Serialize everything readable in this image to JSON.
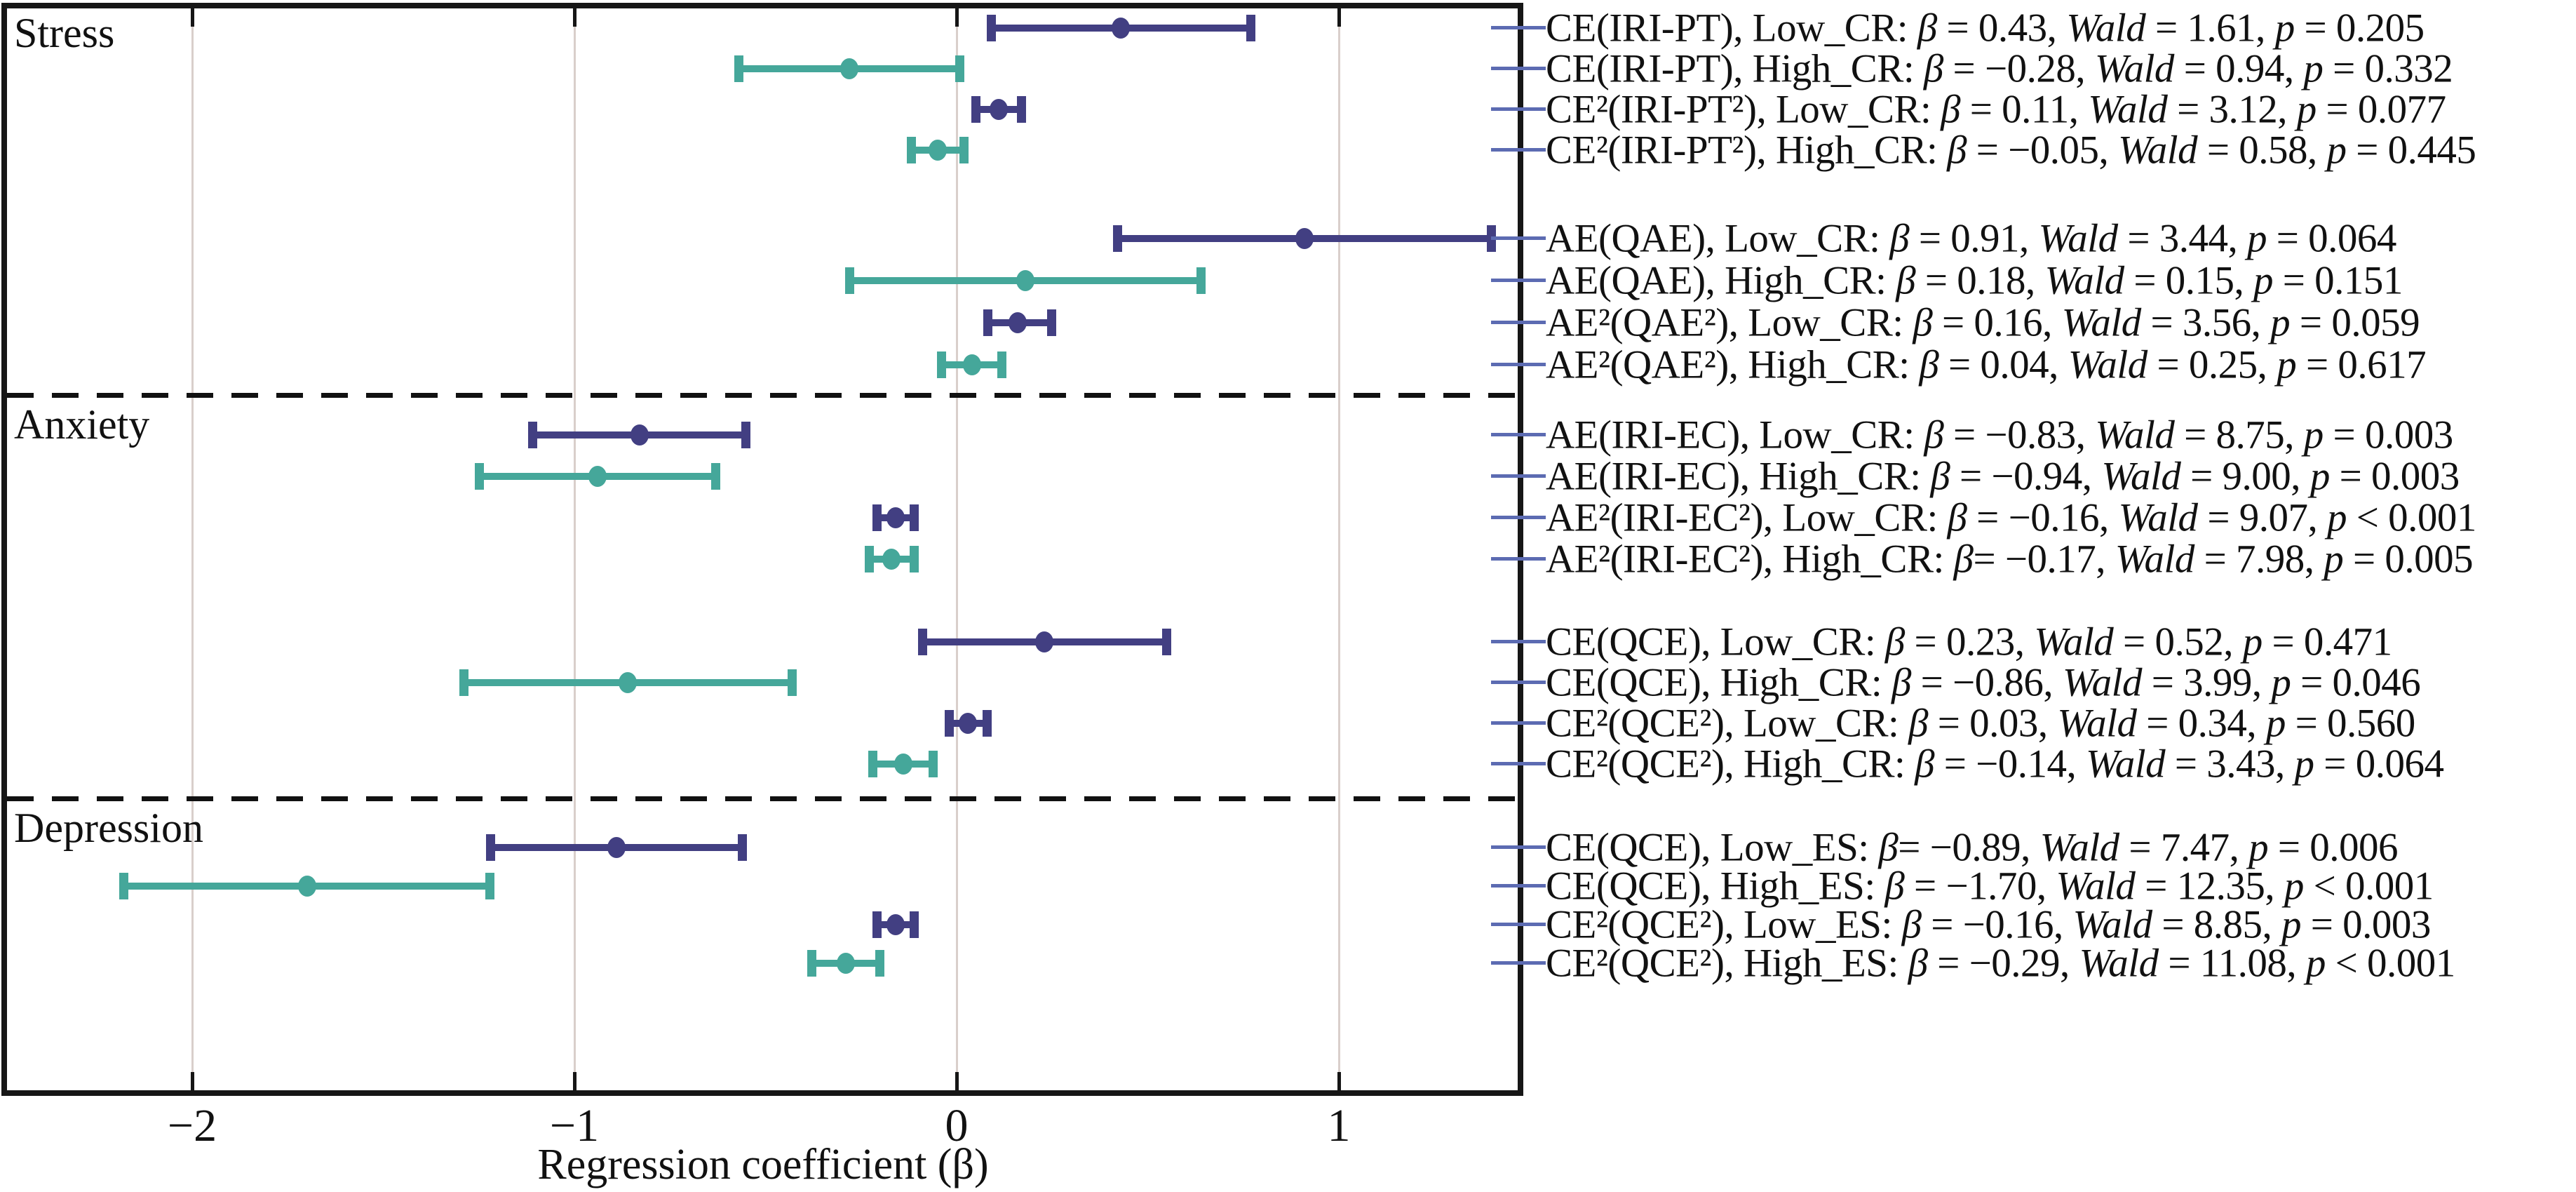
{
  "figure": {
    "x_axis_title": "Regression coefficient (β)",
    "section_labels": [
      "Stress",
      "Anxiety",
      "Depression"
    ]
  },
  "chart_data": {
    "type": "scatter",
    "subtype": "forest-plot-horizontal-error-bars",
    "title": "",
    "xlabel": "Regression coefficient (β)",
    "ylabel": "",
    "xlim": [
      -2.49,
      1.49
    ],
    "x_ticks": [
      -2,
      -1,
      0,
      1
    ],
    "x_tick_labels": [
      "−2",
      "−1",
      "0",
      "1"
    ],
    "grid": "vertical-light",
    "legend_position": "none",
    "colors": {
      "low_series": "#423f82",
      "high_series": "#45a79a",
      "leader_line": "#5c6bb2",
      "gridline": "#d9cfcb",
      "frame": "#161616",
      "separator": "#111111",
      "background": "#ffffff"
    },
    "sections": [
      {
        "name": "Stress",
        "blocks": [
          {
            "rows": [
              {
                "predictor": "CE(IRI-PT)",
                "moderator": "Low_CR",
                "series": "low",
                "beta": 0.43,
                "beta_txt": " = 0.43",
                "wald": "1.61",
                "p_txt": " = 0.205",
                "ci": [
                  0.09,
                  0.77
                ]
              },
              {
                "predictor": "CE(IRI-PT)",
                "moderator": "High_CR",
                "series": "high",
                "beta": -0.28,
                "beta_txt": " = −0.28",
                "wald": "0.94",
                "p_txt": " = 0.332",
                "ci": [
                  -0.57,
                  0.01
                ]
              },
              {
                "predictor": "CE²(IRI-PT²)",
                "moderator": "Low_CR",
                "series": "low",
                "beta": 0.11,
                "beta_txt": " = 0.11",
                "wald": "3.12",
                "p_txt": " = 0.077",
                "ci": [
                  0.05,
                  0.17
                ]
              },
              {
                "predictor": "CE²(IRI-PT²)",
                "moderator": "High_CR",
                "series": "high",
                "beta": -0.05,
                "beta_txt": " = −0.05",
                "wald": "0.58",
                "p_txt": " = 0.445",
                "ci": [
                  -0.12,
                  0.02
                ]
              }
            ]
          },
          {
            "rows": [
              {
                "predictor": "AE(QAE)",
                "moderator": "Low_CR",
                "series": "low",
                "beta": 0.91,
                "beta_txt": " = 0.91",
                "wald": "3.44",
                "p_txt": " = 0.064",
                "ci": [
                  0.42,
                  1.4
                ]
              },
              {
                "predictor": "AE(QAE)",
                "moderator": "High_CR",
                "series": "high",
                "beta": 0.18,
                "beta_txt": " = 0.18",
                "wald": "0.15",
                "p_txt": " = 0.151",
                "ci": [
                  -0.28,
                  0.64
                ]
              },
              {
                "predictor": "AE²(QAE²)",
                "moderator": "Low_CR",
                "series": "low",
                "beta": 0.16,
                "beta_txt": " = 0.16",
                "wald": "3.56",
                "p_txt": " = 0.059",
                "ci": [
                  0.08,
                  0.25
                ]
              },
              {
                "predictor": "AE²(QAE²)",
                "moderator": "High_CR",
                "series": "high",
                "beta": 0.04,
                "beta_txt": " = 0.04",
                "wald": "0.25",
                "p_txt": " = 0.617",
                "ci": [
                  -0.04,
                  0.12
                ]
              }
            ]
          }
        ]
      },
      {
        "name": "Anxiety",
        "blocks": [
          {
            "rows": [
              {
                "predictor": "AE(IRI-EC)",
                "moderator": "Low_CR",
                "series": "low",
                "beta": -0.83,
                "beta_txt": " = −0.83",
                "wald": "8.75",
                "p_txt": " = 0.003",
                "ci": [
                  -1.11,
                  -0.55
                ]
              },
              {
                "predictor": "AE(IRI-EC)",
                "moderator": "High_CR",
                "series": "high",
                "beta": -0.94,
                "beta_txt": " = −0.94",
                "wald": "9.00",
                "p_txt": " = 0.003",
                "ci": [
                  -1.25,
                  -0.63
                ]
              },
              {
                "predictor": "AE²(IRI-EC²)",
                "moderator": "Low_CR",
                "series": "low",
                "beta": -0.16,
                "beta_txt": " = −0.16",
                "wald": "9.07",
                "p_txt": " < 0.001",
                "ci": [
                  -0.21,
                  -0.11
                ]
              },
              {
                "predictor": "AE²(IRI-EC²)",
                "moderator": "High_CR",
                "series": "high",
                "beta": -0.17,
                "beta_txt": "= −0.17",
                "wald": "7.98",
                "p_txt": " = 0.005",
                "ci": [
                  -0.23,
                  -0.11
                ]
              }
            ]
          },
          {
            "rows": [
              {
                "predictor": "CE(QCE)",
                "moderator": "Low_CR",
                "series": "low",
                "beta": 0.23,
                "beta_txt": " = 0.23",
                "wald": "0.52",
                "p_txt": " = 0.471",
                "ci": [
                  -0.09,
                  0.55
                ]
              },
              {
                "predictor": "CE(QCE)",
                "moderator": "High_CR",
                "series": "high",
                "beta": -0.86,
                "beta_txt": " = −0.86",
                "wald": "3.99",
                "p_txt": " = 0.046",
                "ci": [
                  -1.29,
                  -0.43
                ]
              },
              {
                "predictor": "CE²(QCE²)",
                "moderator": "Low_CR",
                "series": "low",
                "beta": 0.03,
                "beta_txt": " = 0.03",
                "wald": "0.34",
                "p_txt": " = 0.560",
                "ci": [
                  -0.02,
                  0.08
                ]
              },
              {
                "predictor": "CE²(QCE²)",
                "moderator": "High_CR",
                "series": "high",
                "beta": -0.14,
                "beta_txt": " = −0.14",
                "wald": "3.43",
                "p_txt": " = 0.064",
                "ci": [
                  -0.22,
                  -0.06
                ]
              }
            ]
          }
        ]
      },
      {
        "name": "Depression",
        "blocks": [
          {
            "rows": [
              {
                "predictor": "CE(QCE)",
                "moderator": "Low_ES",
                "series": "low",
                "beta": -0.89,
                "beta_txt": "= −0.89",
                "wald": "7.47",
                "p_txt": " = 0.006",
                "ci": [
                  -1.22,
                  -0.56
                ]
              },
              {
                "predictor": "CE(QCE)",
                "moderator": "High_ES",
                "series": "high",
                "beta": -1.7,
                "beta_txt": " = −1.70",
                "wald": "12.35",
                "p_txt": " < 0.001",
                "ci": [
                  -2.18,
                  -1.22
                ]
              },
              {
                "predictor": "CE²(QCE²)",
                "moderator": "Low_ES",
                "series": "low",
                "beta": -0.16,
                "beta_txt": " = −0.16",
                "wald": "8.85",
                "p_txt": " = 0.003",
                "ci": [
                  -0.21,
                  -0.11
                ]
              },
              {
                "predictor": "CE²(QCE²)",
                "moderator": "High_ES",
                "series": "high",
                "beta": -0.29,
                "beta_txt": " = −0.29",
                "wald": "11.08",
                "p_txt": " < 0.001",
                "ci": [
                  -0.38,
                  -0.2
                ]
              }
            ]
          }
        ]
      }
    ],
    "stat_symbols": {
      "beta": "β",
      "wald": "Wald",
      "p": "p"
    }
  }
}
